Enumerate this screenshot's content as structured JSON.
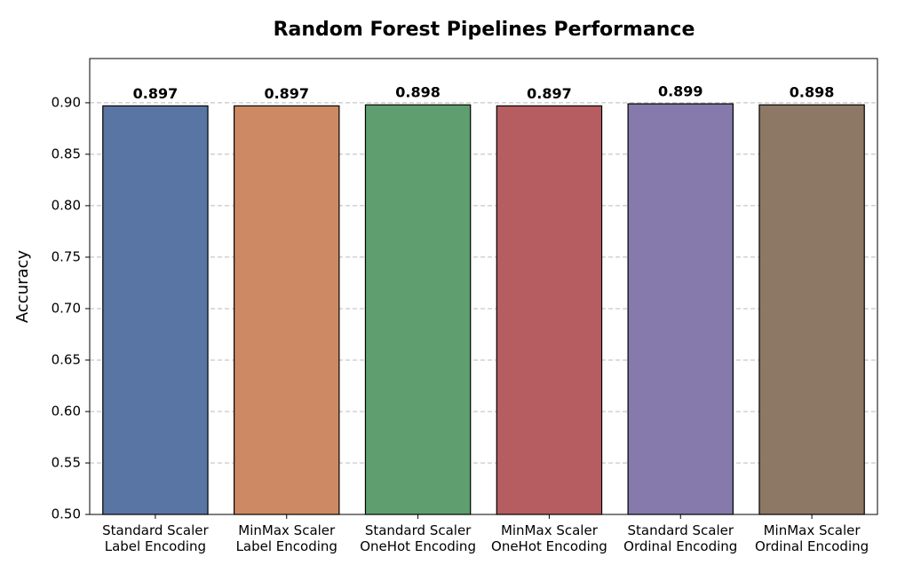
{
  "chart_data": {
    "type": "bar",
    "title": "Random Forest Pipelines Performance",
    "y_label": "Accuracy",
    "categories": [
      "Standard Scaler\nLabel Encoding",
      "MinMax Scaler\nLabel Encoding",
      "Standard Scaler\nOneHot Encoding",
      "MinMax Scaler\nOneHot Encoding",
      "Standard Scaler\nOrdinal Encoding",
      "MinMax Scaler\nOrdinal Encoding"
    ],
    "values": [
      0.897,
      0.897,
      0.898,
      0.897,
      0.899,
      0.898
    ],
    "colors": [
      "#5975a4",
      "#cc8963",
      "#5f9e6e",
      "#b55d60",
      "#857aab",
      "#8d7866"
    ],
    "ylim": [
      0.5,
      0.943
    ],
    "yticks": [
      {
        "value": 0.5,
        "label": "0.50"
      },
      0.55,
      {
        "value": 0.6,
        "label": "0.60"
      },
      0.65,
      {
        "value": 0.7,
        "label": "0.70"
      },
      0.75,
      {
        "value": 0.8,
        "label": "0.80"
      },
      0.85,
      {
        "value": 0.9,
        "label": "0.90"
      }
    ],
    "grid": true
  }
}
